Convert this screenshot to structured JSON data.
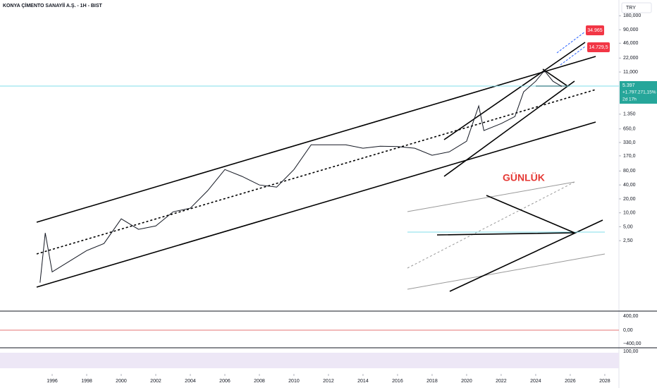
{
  "chart_data": {
    "type": "line",
    "title": "KONYA ÇİMENTO SANAYİİ A.Ş. - 1H - BIST",
    "currency": "TRY",
    "log_y": true,
    "color": "#131722",
    "x": [
      1995.3,
      1995.6,
      1996.0,
      1997.0,
      1998.0,
      1999.0,
      2000.0,
      2001.0,
      2002.0,
      2003.0,
      2004.0,
      2005.0,
      2006.0,
      2007.0,
      2008.0,
      2009.0,
      2010.0,
      2011.0,
      2012.0,
      2013.0,
      2014.0,
      2015.0,
      2016.0,
      2017.0,
      2018.0,
      2019.0,
      2020.0,
      2020.7,
      2021.0,
      2022.0,
      2022.8,
      2023.3,
      2024.0,
      2024.5,
      2025.0,
      2025.5
    ],
    "values": [
      0.31,
      3.68,
      0.53,
      0.9,
      1.53,
      2.17,
      7.4,
      4.4,
      5.2,
      10.5,
      12.6,
      30,
      86,
      61,
      40,
      36,
      86,
      295,
      295,
      295,
      248,
      275,
      270,
      248,
      175,
      208,
      352,
      2040,
      597,
      845,
      1200,
      4100,
      6950,
      11800,
      6950,
      5397
    ],
    "xlim": [
      1992.98,
      2028.82
    ],
    "xticks": [
      1996,
      1998,
      2000,
      2002,
      2004,
      2006,
      2008,
      2010,
      2012,
      2014,
      2016,
      2018,
      2020,
      2022,
      2024,
      2026,
      2028
    ],
    "ylim": [
      0.078,
      395000
    ],
    "yticks": [
      {
        "value": 180000,
        "label": "180,000"
      },
      {
        "value": 90000,
        "label": "90,000"
      },
      {
        "value": 46000,
        "label": "46,000"
      },
      {
        "value": 22000,
        "label": "22,000"
      },
      {
        "value": 11000,
        "label": "11,000"
      },
      {
        "value": 1350,
        "label": "1.350"
      },
      {
        "value": 650,
        "label": "650,0"
      },
      {
        "value": 330,
        "label": "330,0"
      },
      {
        "value": 170,
        "label": "170,0"
      },
      {
        "value": 80,
        "label": "80,00"
      },
      {
        "value": 40,
        "label": "40,00"
      },
      {
        "value": 20,
        "label": "20,00"
      },
      {
        "value": 10,
        "label": "10,00"
      },
      {
        "value": 5,
        "label": "5,00"
      },
      {
        "value": 2.5,
        "label": "2,50"
      }
    ],
    "last_price": {
      "value": 5397,
      "label": "5.397",
      "change": "+1.797.271,15%",
      "countdown": "2d 17h"
    },
    "annotations": [
      "GÜNLÜK",
      "34.965",
      "14.729,5"
    ],
    "macd_ticks": [
      "400,00",
      "0,00",
      "−400,00"
    ],
    "rsi_ticks": [
      "100,00"
    ]
  }
}
